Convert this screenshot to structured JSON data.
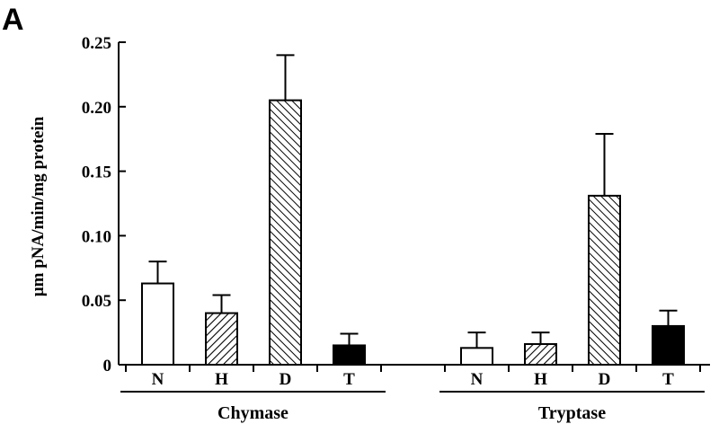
{
  "panel_label": "A",
  "chart_data": {
    "type": "bar",
    "ylabel": "µm pNA/min/mg protein",
    "ylim": [
      0,
      0.25
    ],
    "yticks": [
      "0",
      "0.05",
      "0.10",
      "0.15",
      "0.20",
      "0.25"
    ],
    "ytick_values": [
      0,
      0.05,
      0.1,
      0.15,
      0.2,
      0.25
    ],
    "groups": [
      {
        "name": "Chymase",
        "categories": [
          "N",
          "H",
          "D",
          "T"
        ],
        "values": [
          0.063,
          0.04,
          0.205,
          0.015
        ],
        "errors": [
          0.017,
          0.014,
          0.035,
          0.009
        ]
      },
      {
        "name": "Tryptase",
        "categories": [
          "N",
          "H",
          "D",
          "T"
        ],
        "values": [
          0.013,
          0.016,
          0.131,
          0.03
        ],
        "errors": [
          0.012,
          0.009,
          0.048,
          0.012
        ]
      }
    ],
    "patterns": {
      "N": "open",
      "H": "right-hatch",
      "D": "left-hatch",
      "T": "solid"
    },
    "colors": {
      "bar_outline": "#000000",
      "solid_fill": "#000000",
      "open_fill": "#ffffff"
    }
  }
}
